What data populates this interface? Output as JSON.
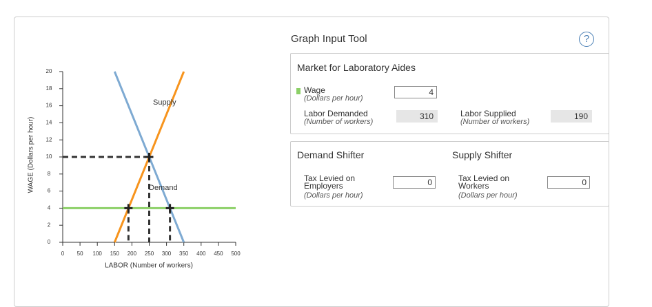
{
  "chart_data": {
    "type": "line",
    "x_label": "LABOR (Number of workers)",
    "y_label": "WAGE (Dollars per hour)",
    "xlim": [
      0,
      500
    ],
    "ylim": [
      0,
      20
    ],
    "xticks": [
      0,
      50,
      100,
      150,
      200,
      250,
      300,
      350,
      400,
      450,
      500
    ],
    "yticks": [
      0,
      2,
      4,
      6,
      8,
      10,
      12,
      14,
      16,
      18,
      20
    ],
    "series": [
      {
        "name": "Demand",
        "color": "#7eaad2",
        "x": [
          150,
          350
        ],
        "values": [
          20,
          0
        ]
      },
      {
        "name": "Supply",
        "color": "#f7941d",
        "x": [
          150,
          350
        ],
        "values": [
          0,
          20
        ]
      }
    ],
    "hlines": [
      {
        "y": 4,
        "color": "#8cd067"
      }
    ],
    "markers": [
      {
        "x": 250,
        "y": 10,
        "guide": "both"
      },
      {
        "x": 190,
        "y": 4,
        "guide": "down"
      },
      {
        "x": 310,
        "y": 4,
        "guide": "down"
      }
    ]
  },
  "panel": {
    "title": "Graph Input Tool",
    "help": "?",
    "market": {
      "title": "Market for Laboratory Aides",
      "wage": {
        "label": "Wage",
        "unit": "(Dollars per hour)",
        "value": 4
      },
      "demanded": {
        "label": "Labor Demanded",
        "unit": "(Number of workers)",
        "value": 310
      },
      "supplied": {
        "label": "Labor Supplied",
        "unit": "(Number of workers)",
        "value": 190
      }
    },
    "demand_shifter": {
      "title": "Demand Shifter",
      "label": "Tax Levied on Employers",
      "unit": "(Dollars per hour)",
      "value": 0
    },
    "supply_shifter": {
      "title": "Supply Shifter",
      "label": "Tax Levied on Workers",
      "unit": "(Dollars per hour)",
      "value": 0
    }
  }
}
